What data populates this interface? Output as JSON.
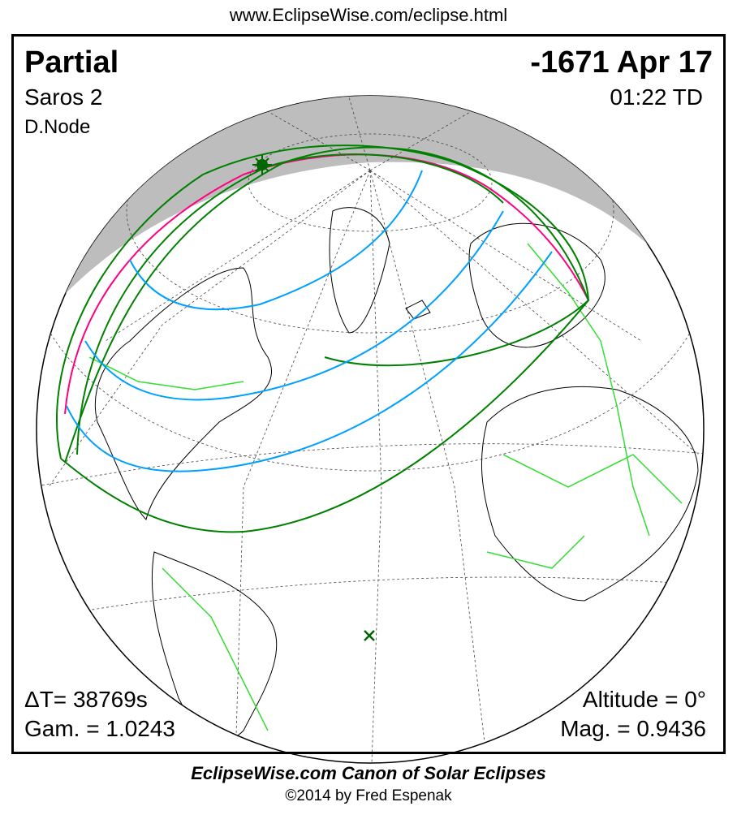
{
  "header": {
    "url": "www.EclipseWise.com/eclipse.html"
  },
  "eclipse": {
    "type": "Partial",
    "date": "-1671 Apr 17",
    "saros": "Saros   2",
    "time": "01:22 TD",
    "node": "D.Node",
    "delta_t": "ΔT=  38769s",
    "gamma": "Gam. = 1.0243",
    "altitude": "Altitude =  0°",
    "magnitude": "Mag. = 0.9436"
  },
  "footer": {
    "title": "EclipseWise.com Canon of Solar Eclipses",
    "copyright": "©2014 by Fred Espenak"
  },
  "colors": {
    "night": "#bdbdbd",
    "limits": "#008000",
    "rise_set": "#ff0080",
    "magnitude_curves": "#00a0ff",
    "borders": "#33dd33"
  },
  "markers": {
    "sun_icon": "sun-icon",
    "greatest_eclipse_icon": "x-mark-icon"
  }
}
